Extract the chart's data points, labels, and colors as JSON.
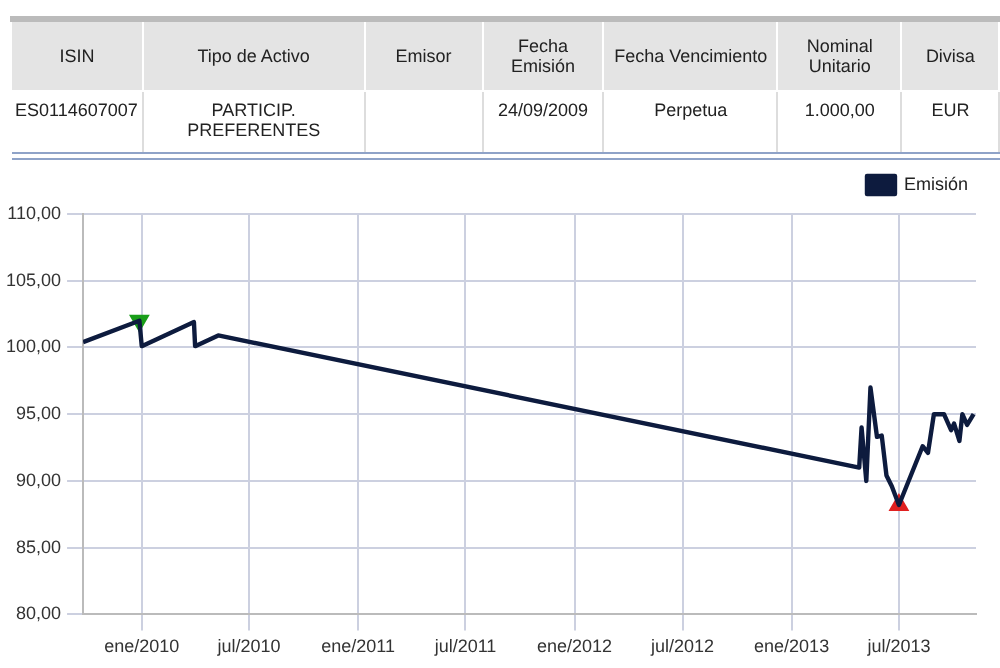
{
  "chart_data": [
    {
      "type": "other",
      "categories": [
        "ISIN",
        "Tipo de Activo",
        "Emisor",
        "Fecha Emisión",
        "Fecha Vencimiento",
        "Nominal Unitario",
        "Divisa"
      ],
      "cell_labels": [
        [
          "ES0114607007",
          "PARTICIP. PREFERENTES",
          null,
          "24/09/2009",
          "Perpetua",
          "1.000,00",
          "EUR"
        ]
      ]
    },
    {
      "type": "line",
      "xlim": [
        "2009-09-24",
        "2013-11-08"
      ],
      "ylim": [
        80,
        110
      ],
      "xticks": [
        {
          "value": "2010-01",
          "label": "ene/2010"
        },
        {
          "value": "2010-07",
          "label": "jul/2010"
        },
        {
          "value": "2011-01",
          "label": "ene/2011"
        },
        {
          "value": "2011-07",
          "label": "jul/2011"
        },
        {
          "value": "2012-01",
          "label": "ene/2012"
        },
        {
          "value": "2012-07",
          "label": "jul/2012"
        },
        {
          "value": "2013-01",
          "label": "ene/2013"
        },
        {
          "value": "2013-07",
          "label": "jul/2013"
        }
      ],
      "yticks": [
        {
          "value": 80,
          "label": "80,00"
        },
        {
          "value": 85,
          "label": "85,00"
        },
        {
          "value": 90,
          "label": "90,00"
        },
        {
          "value": 95,
          "label": "95,00"
        },
        {
          "value": 100,
          "label": "100,00"
        },
        {
          "value": 105,
          "label": "105,00"
        },
        {
          "value": 110,
          "label": "110,00"
        }
      ],
      "grid": true,
      "legend": "top right",
      "marker": "none",
      "line_style": "solid",
      "series": [
        {
          "name": "Emisión",
          "color": "#0d1b3e",
          "x": [
            "2009-09-24",
            "2009-12-28",
            "2010-01-01",
            "2010-03-30",
            "2010-04-01",
            "2010-05-10",
            "2013-04-25",
            "2013-04-29",
            "2013-05-07",
            "2013-05-14",
            "2013-05-25",
            "2013-06-02",
            "2013-06-10",
            "2013-06-19",
            "2013-07-01",
            "2013-08-10",
            "2013-08-19",
            "2013-08-29",
            "2013-09-15",
            "2013-09-27",
            "2013-10-02",
            "2013-10-11",
            "2013-10-16",
            "2013-10-24",
            "2013-11-04"
          ],
          "values": [
            100.4,
            102.0,
            100.1,
            101.9,
            100.1,
            100.9,
            91.0,
            94.0,
            90.0,
            97.0,
            93.3,
            93.4,
            90.4,
            89.6,
            88.2,
            92.6,
            92.1,
            95.0,
            95.0,
            93.8,
            94.3,
            93.0,
            95.0,
            94.2,
            95.0
          ]
        },
        {
          "type": "scatter",
          "marker": "triangle",
          "color": "#1a9e1a",
          "x": [
            "2009-12-28"
          ],
          "values": [
            102.0
          ]
        },
        {
          "type": "scatter",
          "marker": "triangle",
          "color": "#e02020",
          "x": [
            "2013-07-01"
          ],
          "values": [
            88.2
          ]
        }
      ]
    }
  ]
}
